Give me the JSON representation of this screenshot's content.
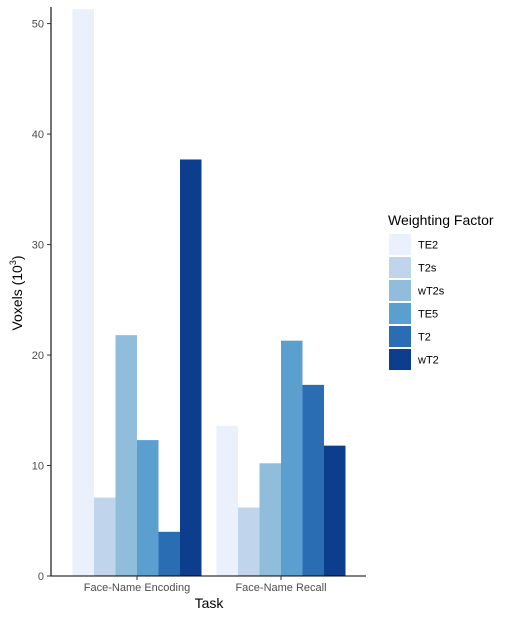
{
  "chart_data": {
    "type": "bar",
    "xlabel": "Task",
    "ylabel": "Voxels (10",
    "ylabel_superscript": "3",
    "ylabel_close": ")",
    "ylim": [
      0,
      51.5
    ],
    "yticks": [
      0,
      10,
      20,
      30,
      40,
      50
    ],
    "categories": [
      "Face-Name Encoding",
      "Face-Name Recall"
    ],
    "legend": {
      "title": "Weighting Factor",
      "placement": "right"
    },
    "grid": false,
    "series": [
      {
        "name": "TE2",
        "color": "#eaf1fc",
        "values": [
          51.3,
          13.6
        ]
      },
      {
        "name": "T2s",
        "color": "#c0d5ec",
        "values": [
          7.1,
          6.2
        ]
      },
      {
        "name": "wT2s",
        "color": "#91bddd",
        "values": [
          21.8,
          10.2
        ]
      },
      {
        "name": "TE5",
        "color": "#5b9fcf",
        "values": [
          12.3,
          21.3
        ]
      },
      {
        "name": "T2",
        "color": "#2b6db3",
        "values": [
          4.0,
          17.3
        ]
      },
      {
        "name": "wT2",
        "color": "#0d3e8e",
        "values": [
          37.7,
          11.8
        ]
      }
    ]
  }
}
